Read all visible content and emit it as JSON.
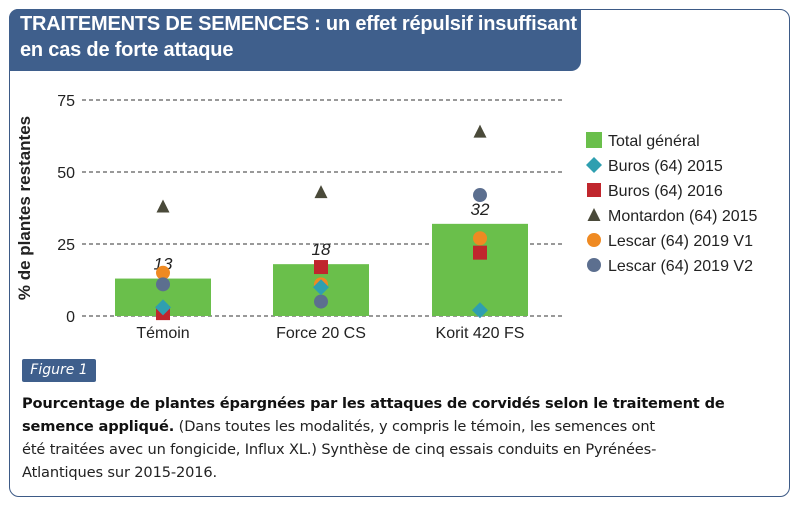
{
  "header": {
    "title_line1": "TRAITEMENTS DE SEMENCES : un effet répulsif insuffisant",
    "title_line2": "en cas de forte attaque"
  },
  "figure": {
    "label": "Figure 1",
    "caption_bold_1": "Pourcentage de plantes épargnées par les attaques de corvidés selon le traitement de",
    "caption_bold_2": "semence appliqué.",
    "caption_rest_2": " (Dans toutes les modalités, y compris le témoin, les semences ont",
    "caption_line3": "été traitées avec un fongicide, Influx XL.) Synthèse de cinq essais conduits en Pyrénées-",
    "caption_line4": "Atlantiques sur 2015-2016."
  },
  "colors": {
    "header_bg": "#3f5f8c",
    "bar": "#6abf4b",
    "buros_2015": "#2f9fb0",
    "buros_2016": "#c0262d",
    "montardon_2015": "#4a4a3a",
    "lescar_v1": "#ef8a22",
    "lescar_v2": "#5c6f8f"
  },
  "chart_data": {
    "type": "bar",
    "ylabel": "% de plantes restantes",
    "ylim": [
      0,
      75
    ],
    "yticks": [
      0,
      25,
      50,
      75
    ],
    "grid": "dashed horizontal",
    "legend_position": "right",
    "categories": [
      "Témoin",
      "Force 20 CS",
      "Korit 420 FS"
    ],
    "series": [
      {
        "name": "Total général",
        "marker": "bar",
        "color": "#6abf4b",
        "values": [
          13,
          18,
          32
        ],
        "labels": [
          "13",
          "18",
          "32"
        ]
      },
      {
        "name": "Buros (64) 2015",
        "marker": "diamond",
        "color": "#2f9fb0",
        "values": [
          3,
          10,
          2
        ]
      },
      {
        "name": "Buros (64) 2016",
        "marker": "square",
        "color": "#c0262d",
        "values": [
          1,
          17,
          22
        ]
      },
      {
        "name": "Montardon (64) 2015",
        "marker": "triangle",
        "color": "#4a4a3a",
        "values": [
          38,
          43,
          64
        ]
      },
      {
        "name": "Lescar (64) 2019 V1",
        "marker": "circle",
        "color": "#ef8a22",
        "values": [
          15,
          11,
          27
        ]
      },
      {
        "name": "Lescar (64) 2019 V2",
        "marker": "circle",
        "color": "#5c6f8f",
        "values": [
          11,
          5,
          42
        ]
      }
    ]
  }
}
